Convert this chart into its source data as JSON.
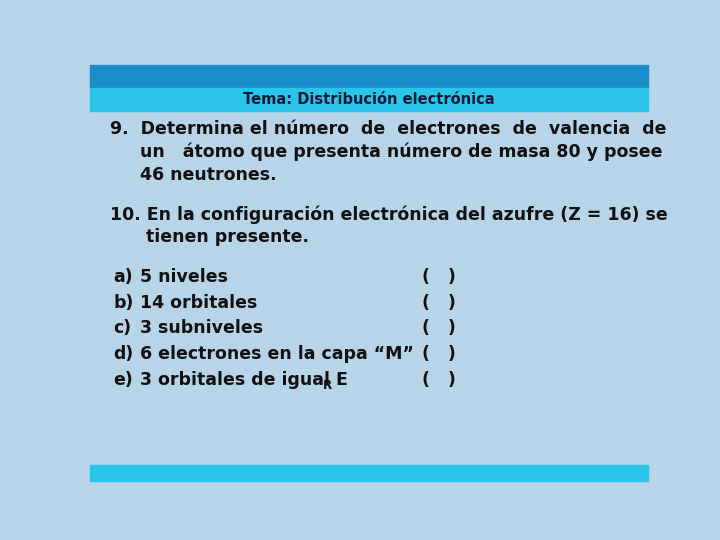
{
  "title": "Tema: Distribución electrónica",
  "title_bar_color": "#1A8CC9",
  "title_bar2_color": "#29C4E8",
  "title_text_color": "#0d1a3a",
  "background_color": "#B8D4E8",
  "body_background": "#D8ECF8",
  "q9_line1": "9.  Determina el número  de  electrones  de  valencia  de",
  "q9_line2": "     un   átomo que presenta número de masa 80 y posee",
  "q9_line3": "     46 neutrones.",
  "q10_line1": "10. En la configuración electrónica del azufre (Z = 16) se",
  "q10_line2": "      tienen presente.",
  "options": [
    {
      "label": "a)",
      "text": "5 niveles"
    },
    {
      "label": "b)",
      "text": "14 orbitales"
    },
    {
      "label": "c)",
      "text": "3 subniveles"
    },
    {
      "label": "d)",
      "text": "6 electrones en la capa “M”"
    },
    {
      "label": "e)",
      "text": "3 orbitales de igual E"
    }
  ],
  "option_suffix": "R",
  "paren_text": "(   )",
  "text_color": "#111111",
  "font_size_body": 12.5,
  "font_size_title": 10.5,
  "top_dark_bar_height": 0.055,
  "top_light_bar_height": 0.055,
  "bottom_bar_height": 0.038
}
